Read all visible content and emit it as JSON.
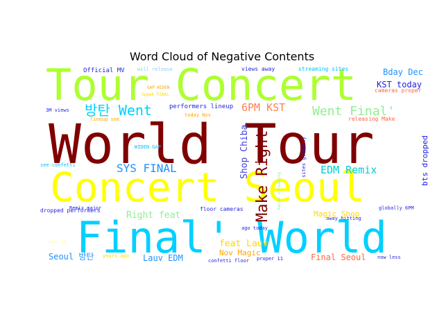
{
  "title": "Word Cloud of Negative Contents",
  "colors": {
    "yellow_green": "#adff2f",
    "dark_red": "#800000",
    "yellow": "#ffff00",
    "cyan": "#00d0ff",
    "blue": "#1f1fe0",
    "orange": "#ffa500",
    "light_green": "#90ee90"
  },
  "words": [
    {
      "text": "World Tour",
      "color": "#800000"
    },
    {
      "text": "Concert Seoul",
      "color": "#ffff00"
    },
    {
      "text": "Tour Concert",
      "color": "#adff2f"
    },
    {
      "text": "Final' World",
      "color": "#00d0ff"
    },
    {
      "text": "Make Right",
      "color": "#800000"
    },
    {
      "text": "Went Final'",
      "color": "#90ee90"
    },
    {
      "text": "방탄 Went",
      "color": "#00d0ff"
    },
    {
      "text": "SYS FINAL",
      "color": "#1e90ff"
    },
    {
      "text": "EDM Remix",
      "color": "#00ced1"
    },
    {
      "text": "6PM KST",
      "color": "#ff7f50"
    },
    {
      "text": "Shop Chiba",
      "color": "#4040e0"
    },
    {
      "text": "Right feat",
      "color": "#90ee90"
    },
    {
      "text": "feat Lauv",
      "color": "#ffd700"
    },
    {
      "text": "Nov Magic",
      "color": "#ffa500"
    },
    {
      "text": "Magic Shop",
      "color": "#ffd700"
    },
    {
      "text": "Final Seoul",
      "color": "#ff6347"
    },
    {
      "text": "Lauv EDM",
      "color": "#1e90ff"
    },
    {
      "text": "Seoul 방탄",
      "color": "#1e90ff"
    },
    {
      "text": "Bday Dec",
      "color": "#1e90ff"
    },
    {
      "text": "KST today",
      "color": "#1f1fe0"
    },
    {
      "text": "bts dropped",
      "color": "#1f1fe0"
    },
    {
      "text": "Official MV",
      "color": "#1f1fe0"
    },
    {
      "text": "will release",
      "color": "#87cefa"
    },
    {
      "text": "views away",
      "color": "#1f1fe0"
    },
    {
      "text": "streaming sites",
      "color": "#00bfff"
    },
    {
      "text": "GAP WIDEN",
      "color": "#ffa500"
    },
    {
      "text": "Speak FINAL",
      "color": "#ffd700"
    },
    {
      "text": "cameras proper",
      "color": "#ff6347"
    },
    {
      "text": "performers lineup",
      "color": "#1f1fe0"
    },
    {
      "text": "today Nov",
      "color": "#ffa500"
    },
    {
      "text": "releasing Make",
      "color": "#ff6347"
    },
    {
      "text": "3M views",
      "color": "#1f1fe0"
    },
    {
      "text": "lineup see",
      "color": "#ffa500"
    },
    {
      "text": "WIDEN GAP",
      "color": "#00bfff"
    },
    {
      "text": "see confetti",
      "color": "#00bfff"
    },
    {
      "text": "Remix major",
      "color": "#1f1fe0"
    },
    {
      "text": "dropped performers",
      "color": "#1f1fe0"
    },
    {
      "text": "floor cameras",
      "color": "#1f1fe0"
    },
    {
      "text": "ago today",
      "color": "#1f1fe0"
    },
    {
      "text": "away hitting",
      "color": "#1f1fe0"
    },
    {
      "text": "globally 6PM",
      "color": "#1f1fe0"
    },
    {
      "text": "less 3M",
      "color": "#ffff80"
    },
    {
      "text": "years ago",
      "color": "#ffd700"
    },
    {
      "text": "confetti floor",
      "color": "#1f1fe0"
    },
    {
      "text": "proper 11",
      "color": "#1f1fe0"
    },
    {
      "text": "now less",
      "color": "#1f1fe0"
    },
    {
      "text": "sites globally",
      "color": "#1f1fe0"
    },
    {
      "text": "major streaming",
      "color": "#90ee90"
    }
  ]
}
